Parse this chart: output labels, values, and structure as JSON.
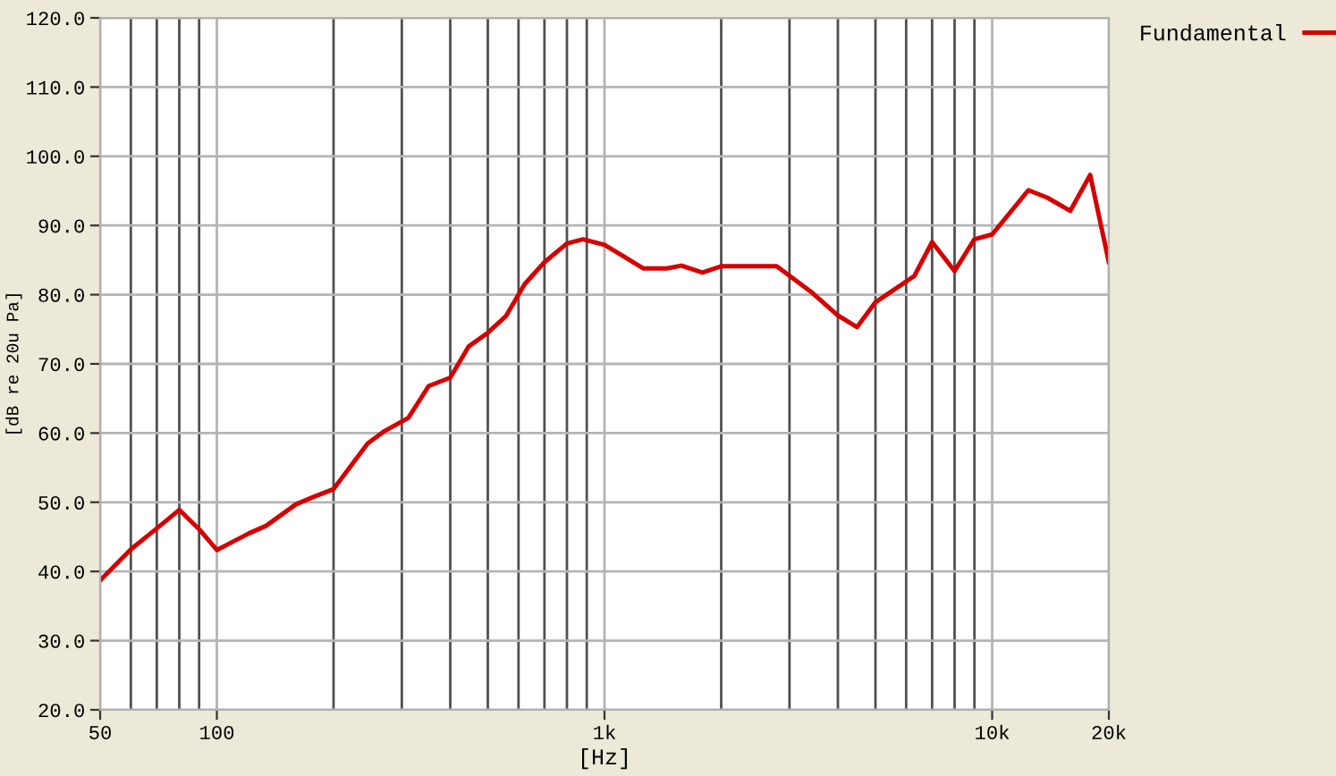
{
  "chart_data": {
    "type": "line",
    "xlabel": "[Hz]",
    "ylabel": "[dB re 20u Pa]",
    "log": "x",
    "grid": true,
    "legend": "top right",
    "marker": "none",
    "line_style": "solid",
    "xlim": [
      50,
      20000
    ],
    "xticks": [
      50,
      100,
      {
        "value": 1000,
        "label": "1k"
      },
      {
        "value": 10000,
        "label": "10k"
      },
      {
        "value": 20000,
        "label": "20k"
      },
      {
        "value": 60,
        "label": null
      },
      {
        "value": 70,
        "label": null
      },
      {
        "value": 80,
        "label": null
      },
      {
        "value": 90,
        "label": null
      },
      {
        "value": 200,
        "label": null
      },
      {
        "value": 300,
        "label": null
      },
      {
        "value": 400,
        "label": null
      },
      {
        "value": 500,
        "label": null
      },
      {
        "value": 600,
        "label": null
      },
      {
        "value": 700,
        "label": null
      },
      {
        "value": 800,
        "label": null
      },
      {
        "value": 900,
        "label": null
      },
      {
        "value": 2000,
        "label": null
      },
      {
        "value": 3000,
        "label": null
      },
      {
        "value": 4000,
        "label": null
      },
      {
        "value": 5000,
        "label": null
      },
      {
        "value": 6000,
        "label": null
      },
      {
        "value": 7000,
        "label": null
      },
      {
        "value": 8000,
        "label": null
      },
      {
        "value": 9000,
        "label": null
      }
    ],
    "ylim": [
      20,
      120
    ],
    "yticks": [
      {
        "value": 20,
        "label": "20.0"
      },
      {
        "value": 30,
        "label": "30.0"
      },
      {
        "value": 40,
        "label": "40.0"
      },
      {
        "value": 50,
        "label": "50.0"
      },
      {
        "value": 60,
        "label": "60.0"
      },
      {
        "value": 70,
        "label": "70.0"
      },
      {
        "value": 80,
        "label": "80.0"
      },
      {
        "value": 90,
        "label": "90.0"
      },
      {
        "value": 100,
        "label": "100.0"
      },
      {
        "value": 110,
        "label": "110.0"
      },
      {
        "value": 120,
        "label": "120.0"
      }
    ],
    "series": [
      {
        "name": "Fundamental",
        "color": "#d40000",
        "x": [
          50,
          60,
          71,
          80,
          90,
          100,
          121,
          134,
          160,
          178,
          200,
          245,
          271,
          312,
          352,
          400,
          446,
          500,
          557,
          622,
          700,
          800,
          880,
          1000,
          1131,
          1258,
          1448,
          1580,
          1788,
          2000,
          2500,
          2780,
          3430,
          4000,
          4480,
          5000,
          6300,
          7000,
          8000,
          9000,
          10000,
          12400,
          13900,
          15900,
          17900,
          20000
        ],
        "values": [
          38.7,
          43.2,
          46.5,
          48.9,
          46.1,
          43.1,
          45.5,
          46.6,
          49.7,
          50.8,
          51.9,
          58.5,
          60.3,
          62.2,
          66.8,
          68.0,
          72.5,
          74.5,
          76.9,
          81.5,
          84.7,
          87.4,
          88.0,
          87.2,
          85.4,
          83.8,
          83.8,
          84.2,
          83.2,
          84.1,
          84.1,
          84.1,
          80.3,
          77.0,
          75.3,
          78.9,
          82.7,
          87.6,
          83.4,
          88.0,
          88.7,
          95.1,
          94.0,
          92.1,
          97.3,
          84.7
        ]
      }
    ]
  }
}
